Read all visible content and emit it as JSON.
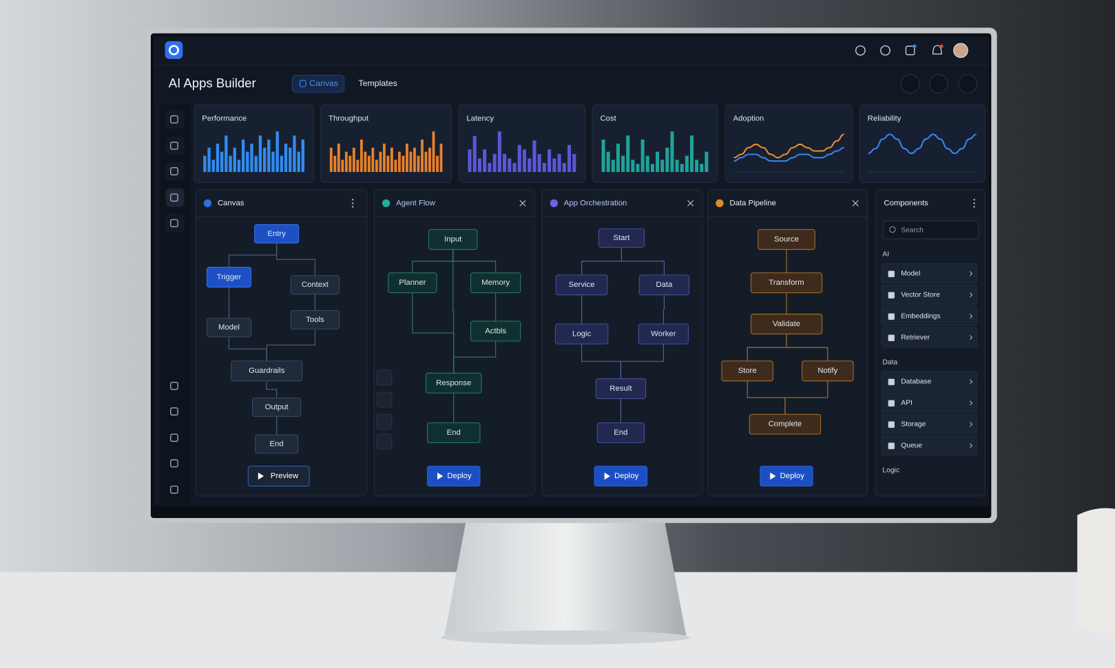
{
  "header": {
    "title": "AI Apps Builder",
    "tabs": [
      "Canvas",
      "Templates"
    ]
  },
  "metrics": [
    {
      "title": "Performance",
      "type": "bar",
      "color": "#2f8cf0",
      "values": [
        4,
        6,
        3,
        7,
        5,
        9,
        4,
        6,
        3,
        8,
        5,
        7,
        4,
        9,
        6,
        8,
        5,
        10,
        4,
        7,
        6,
        9,
        5,
        8
      ]
    },
    {
      "title": "Throughput",
      "type": "bar",
      "color": "#e8802a",
      "values": [
        6,
        4,
        7,
        3,
        5,
        4,
        6,
        3,
        8,
        5,
        4,
        6,
        3,
        5,
        7,
        4,
        6,
        3,
        5,
        4,
        7,
        5,
        6,
        4,
        8,
        5,
        6,
        10,
        4,
        7
      ]
    },
    {
      "title": "Latency",
      "type": "bar",
      "color": "#5b57d6",
      "values": [
        5,
        8,
        3,
        5,
        2,
        4,
        9,
        4,
        3,
        2,
        6,
        5,
        3,
        7,
        4,
        2,
        5,
        3,
        4,
        2,
        6,
        4
      ]
    },
    {
      "title": "Cost",
      "type": "bar",
      "color": "#1fa39a",
      "values": [
        8,
        5,
        3,
        7,
        4,
        9,
        3,
        2,
        8,
        4,
        2,
        5,
        3,
        6,
        10,
        3,
        2,
        4,
        9,
        3,
        2,
        5
      ]
    },
    {
      "title": "Adoption",
      "type": "line",
      "series": [
        {
          "color": "#e8902a",
          "values": [
            3,
            4,
            6,
            7,
            6,
            4,
            3,
            4,
            6,
            7,
            6,
            5,
            5,
            6,
            8,
            10
          ]
        },
        {
          "color": "#3b82f0",
          "values": [
            2,
            3,
            4,
            4,
            3,
            2,
            2,
            2,
            3,
            4,
            4,
            3,
            3,
            4,
            5,
            6
          ]
        }
      ]
    },
    {
      "title": "Reliability",
      "type": "line",
      "series": [
        {
          "color": "#3b82f0",
          "values": [
            3,
            4,
            6,
            7,
            6,
            4,
            3,
            4,
            6,
            7,
            6,
            4,
            3,
            4,
            6,
            7
          ]
        }
      ]
    }
  ],
  "panels": [
    {
      "title": "Canvas",
      "nodes": [
        "Entry",
        "Trigger",
        "Context",
        "Model",
        "Tools",
        "Guardrails",
        "Output",
        "End"
      ],
      "button": "Preview"
    },
    {
      "title": "Agent Flow",
      "nodes": [
        "Input",
        "Planner",
        "Memory",
        "Actbls",
        "Response",
        "End"
      ],
      "button": "Deploy"
    },
    {
      "title": "App Orchestration",
      "nodes": [
        "Start",
        "Service",
        "Data",
        "Logic",
        "Worker",
        "Result",
        "End"
      ],
      "button": "Deploy"
    },
    {
      "title": "Data Pipeline",
      "nodes": [
        "Source",
        "Transform",
        "Validate",
        "Store",
        "Notify",
        "Complete"
      ],
      "button": "Deploy"
    }
  ],
  "components": {
    "title": "Components",
    "search": "Search",
    "sections": [
      {
        "title": "AI",
        "items": [
          "Model",
          "Vector Store",
          "Embeddings",
          "Retriever"
        ]
      },
      {
        "title": "Data",
        "items": [
          "Database",
          "API",
          "Storage",
          "Queue"
        ]
      },
      {
        "title": "Logic"
      }
    ]
  }
}
